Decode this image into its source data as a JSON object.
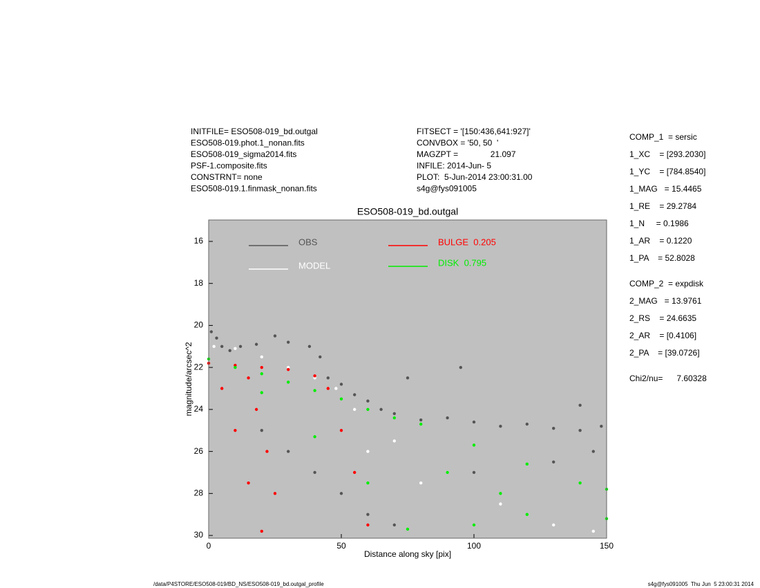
{
  "chart_data": {
    "type": "scatter",
    "title": "ESO508-019_bd.outgal",
    "x_label": "Distance along sky [pix]",
    "y_label": "magnitude/arcsec^2",
    "xlim": [
      0,
      150
    ],
    "xticks": [
      0,
      50,
      100,
      150
    ],
    "ylim": [
      30.13,
      14.98
    ],
    "yticks": [
      16,
      18,
      20,
      22,
      24,
      26,
      28,
      30
    ],
    "background": "#c0c0c0",
    "series": [
      {
        "name": "OBS",
        "color": "#555555",
        "x": [
          1,
          3,
          5,
          8,
          12,
          18,
          25,
          30,
          38,
          42,
          45,
          50,
          55,
          60,
          65,
          70,
          80,
          90,
          100,
          110,
          120,
          130,
          140,
          148,
          20,
          30,
          40,
          50,
          60,
          70,
          100,
          130,
          145,
          75,
          95,
          140
        ],
        "values": [
          20.3,
          20.6,
          21,
          21.2,
          21,
          20.9,
          20.5,
          20.8,
          21,
          21.5,
          22.5,
          22.8,
          23.3,
          23.6,
          24,
          24.2,
          24.5,
          24.4,
          24.6,
          24.8,
          24.7,
          24.9,
          25,
          24.8,
          25,
          26,
          27,
          28,
          29,
          29.5,
          27,
          26.5,
          26,
          22.5,
          22,
          23.8
        ]
      },
      {
        "name": "MODEL",
        "color": "#ffffff",
        "x": [
          2,
          10,
          20,
          30,
          40,
          48,
          55,
          60,
          70,
          80,
          90,
          110,
          130,
          145
        ],
        "values": [
          21,
          21.1,
          21.5,
          22,
          22.5,
          23,
          24,
          26,
          25.5,
          27.5,
          27,
          28.5,
          29.5,
          29.8
        ]
      },
      {
        "name": "BULGE  0.205",
        "color": "#ff0000",
        "x": [
          0,
          10,
          20,
          30,
          40,
          45,
          50,
          55,
          60,
          5,
          10,
          15,
          20,
          25,
          22,
          18,
          15
        ],
        "values": [
          21.8,
          21.9,
          22,
          22.1,
          22.4,
          23,
          25,
          27,
          29.5,
          23,
          25,
          27.5,
          29.8,
          28,
          26,
          24,
          22.5
        ]
      },
      {
        "name": "DISK  0.795",
        "color": "#00ee00",
        "x": [
          0,
          10,
          20,
          30,
          40,
          50,
          60,
          70,
          80,
          100,
          120,
          140,
          150,
          20,
          40,
          60,
          75,
          100,
          120,
          150,
          90,
          110
        ],
        "values": [
          21.6,
          22,
          22.3,
          22.7,
          23.1,
          23.5,
          24,
          24.4,
          24.7,
          25.7,
          26.6,
          27.5,
          27.8,
          23.2,
          25.3,
          27.5,
          29.7,
          29.5,
          29,
          29.2,
          27,
          28
        ]
      }
    ]
  },
  "header_left": [
    "INITFILE= ESO508-019_bd.outgal",
    "ESO508-019.phot.1_nonan.fits",
    "ESO508-019_sigma2014.fits",
    "PSF-1.composite.fits",
    "CONSTRNT= none",
    "ESO508-019.1.finmask_nonan.fits"
  ],
  "header_middle": [
    "FITSECT = '[150:436,641:927]'",
    "CONVBOX = '50, 50  '",
    "MAGZPT =              21.097",
    "INFILE: 2014-Jun- 5",
    "PLOT:  5-Jun-2014 23:00:31.00",
    "s4g@fys091005"
  ],
  "parameters": [
    "COMP_1  = sersic",
    "1_XC    = [293.2030]",
    "1_YC    = [784.8540]",
    "1_MAG   = 15.4465",
    "1_RE    = 29.2784",
    "1_N     = 0.1986",
    "1_AR    = 0.1220",
    "1_PA    = 52.8028",
    "COMP_2  = expdisk",
    "2_MAG   = 13.9761",
    "2_RS    = 24.6635",
    "2_AR    = [0.4106]",
    "2_PA    = [39.0726]",
    "Chi2/nu=      7.60328"
  ],
  "footer_left": "/data/P4STORE/ESO508-019/BD_NS/ESO508-019_bd.outgal_profile",
  "footer_right": "s4g@fys091005  Thu Jun  5 23:00:31 2014"
}
